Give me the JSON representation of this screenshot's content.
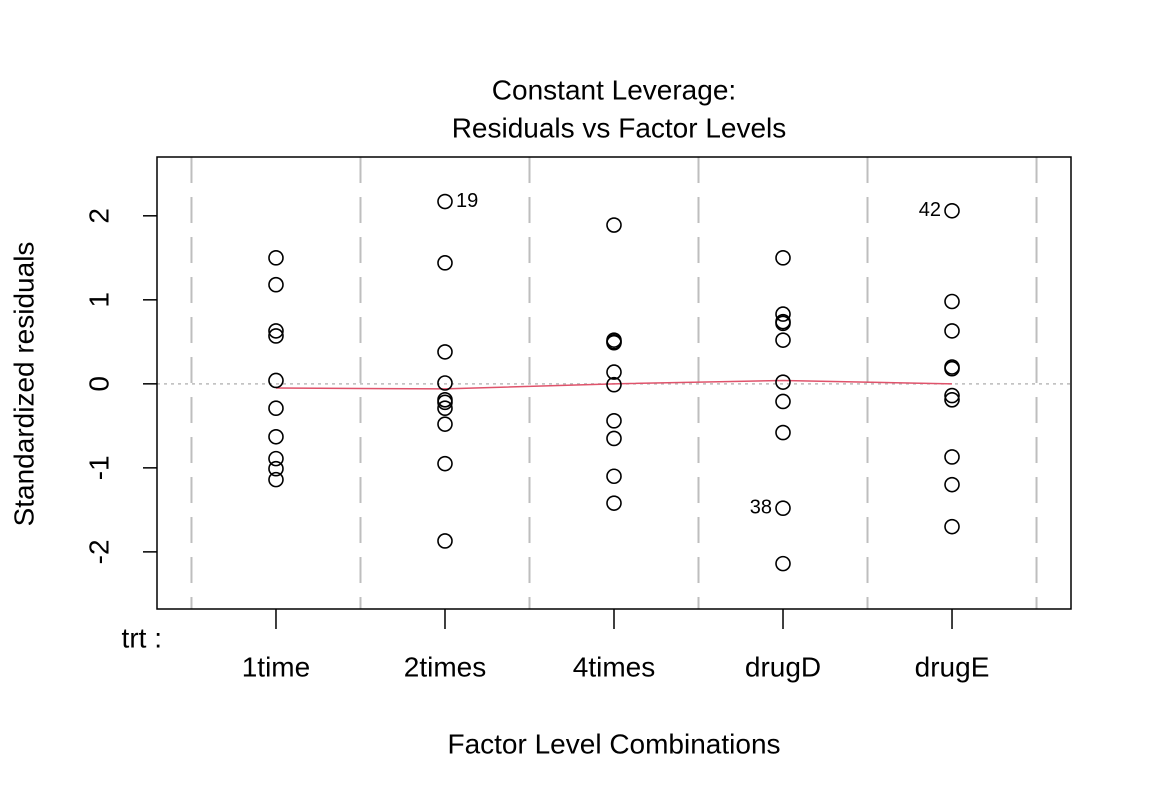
{
  "chart_data": {
    "type": "strip",
    "title": "Constant Leverage:",
    "subtitle": "Residuals vs Factor Levels",
    "x_label": "Factor Level Combinations",
    "y_label": "Standardized residuals",
    "factor_label": "trt :",
    "categories": [
      "1time",
      "2times",
      "4times",
      "drugD",
      "drugE"
    ],
    "values": [
      [
        1.5,
        1.18,
        0.63,
        0.57,
        0.04,
        -0.29,
        -0.63,
        -0.89,
        -1.01,
        -1.14
      ],
      [
        2.17,
        1.44,
        0.38,
        0.01,
        -0.19,
        -0.22,
        -0.29,
        -0.48,
        -0.95,
        -1.87
      ],
      [
        1.89,
        0.52,
        0.5,
        0.49,
        0.14,
        -0.01,
        -0.44,
        -0.65,
        -1.1,
        -1.42
      ],
      [
        1.5,
        0.83,
        0.74,
        0.72,
        0.52,
        0.02,
        -0.21,
        -0.58,
        -1.48,
        -2.14
      ],
      [
        2.06,
        0.98,
        0.63,
        0.2,
        0.18,
        -0.14,
        -0.19,
        -0.87,
        -1.2,
        -1.7
      ]
    ],
    "point_labels": [
      [
        null,
        null,
        null,
        null,
        null,
        null,
        null,
        null,
        null,
        null
      ],
      [
        "19",
        null,
        null,
        null,
        null,
        null,
        null,
        null,
        null,
        null
      ],
      [
        null,
        null,
        null,
        null,
        null,
        null,
        null,
        null,
        null,
        null
      ],
      [
        null,
        null,
        null,
        null,
        null,
        null,
        null,
        null,
        "38",
        null
      ],
      [
        "42",
        null,
        null,
        null,
        null,
        null,
        null,
        null,
        null,
        null
      ]
    ],
    "color": "#000000",
    "smooth": {
      "color": "#DF536B",
      "values": [
        -0.05,
        -0.06,
        0.0,
        0.04,
        0.0
      ]
    },
    "ylim": [
      -2.68,
      2.7
    ],
    "yticks": [
      -2,
      -1,
      0,
      1,
      2
    ],
    "grid": true,
    "grid_color": "#BEBEBE"
  }
}
